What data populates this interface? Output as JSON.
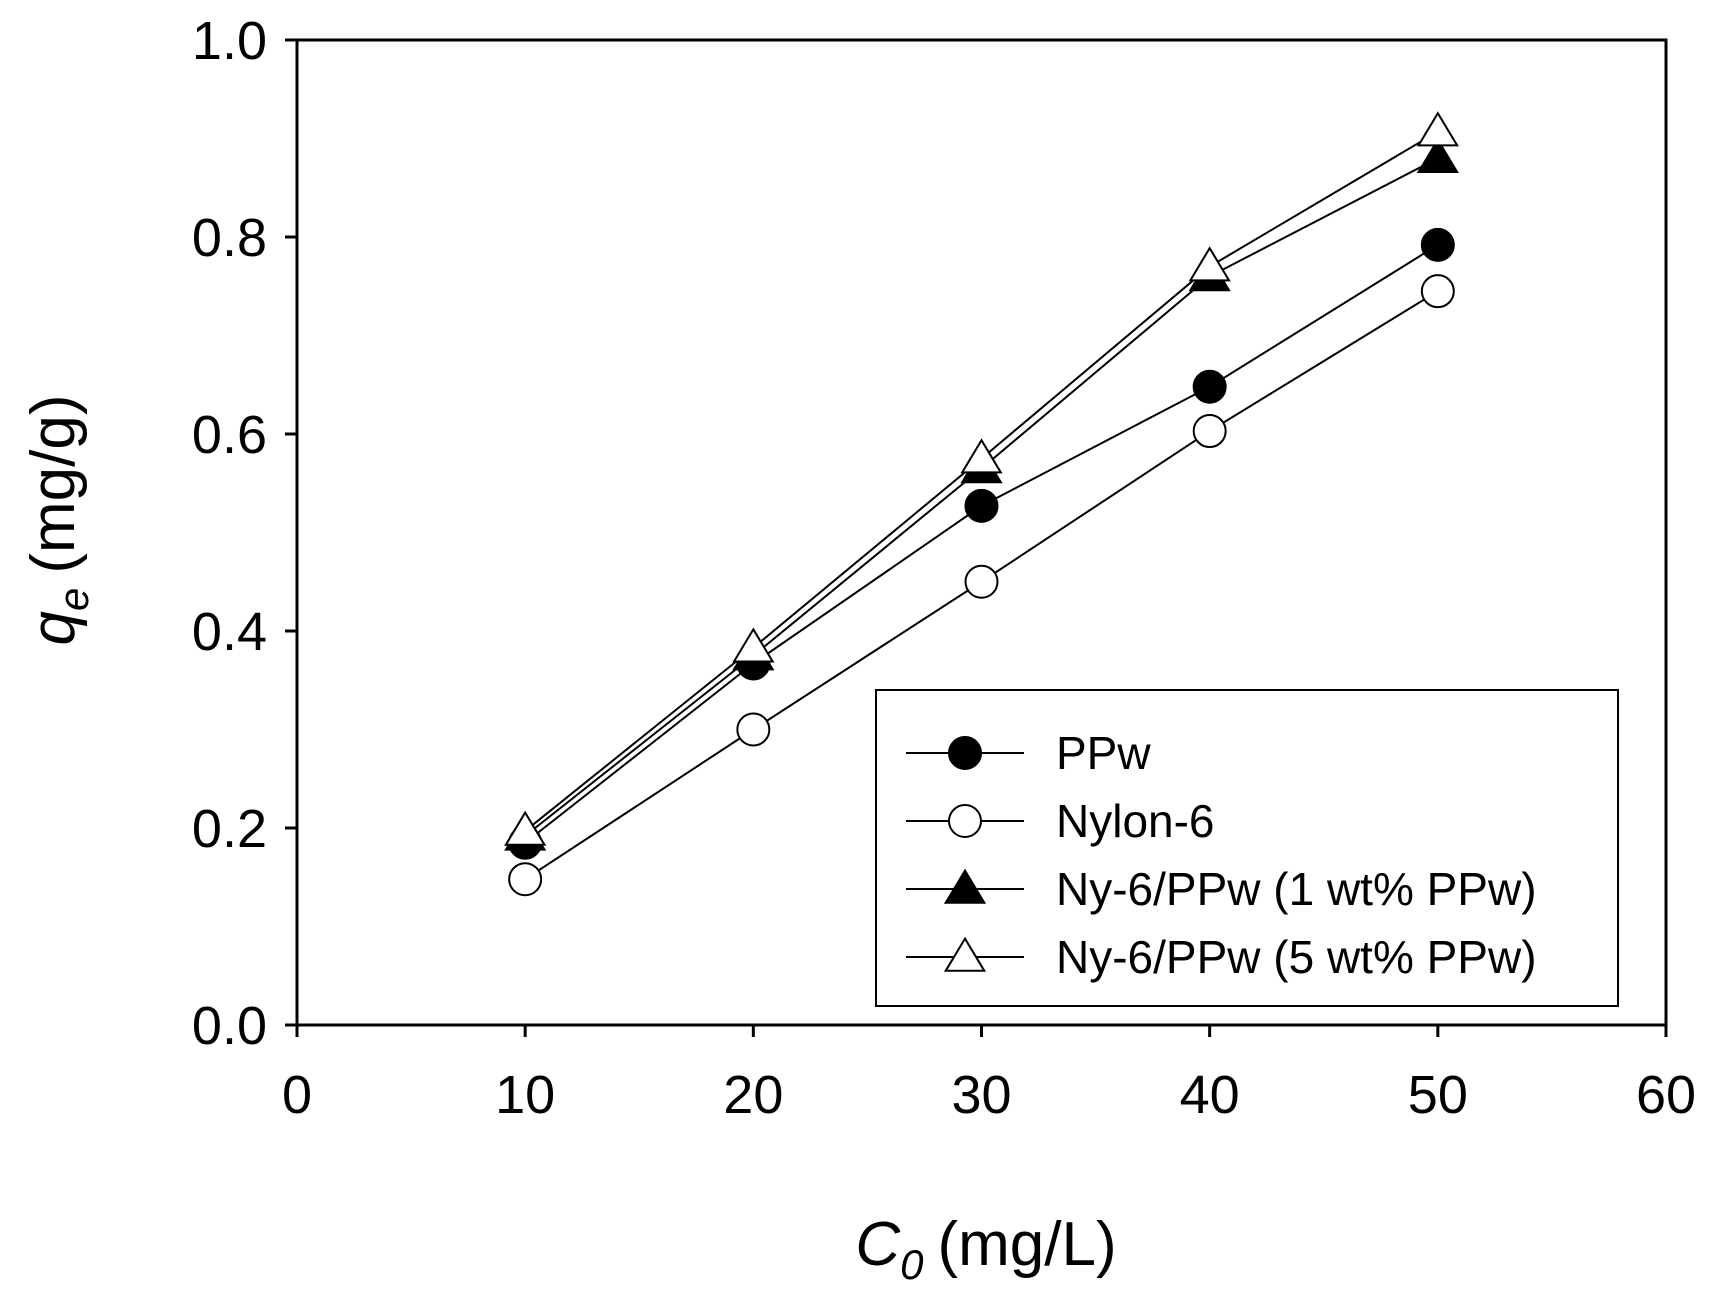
{
  "chart_data": {
    "type": "line",
    "title": "",
    "xlabel": {
      "main": "C",
      "sub": "0",
      "unit": "(mg/L)"
    },
    "ylabel": {
      "main": "q",
      "sub": "e",
      "unit": "(mg/g)"
    },
    "xlim": [
      0,
      60
    ],
    "ylim": [
      0.0,
      1.0
    ],
    "xticks": [
      0,
      10,
      20,
      30,
      40,
      50,
      60
    ],
    "xtick_labels": [
      "0",
      "10",
      "20",
      "30",
      "40",
      "50",
      "60"
    ],
    "yticks": [
      0.0,
      0.2,
      0.4,
      0.6,
      0.8,
      1.0
    ],
    "ytick_labels": [
      "0.0",
      "0.2",
      "0.4",
      "0.6",
      "0.8",
      "1.0"
    ],
    "grid": false,
    "legend_position": "bottom-right",
    "x": [
      10,
      20,
      30,
      40,
      50
    ],
    "series": [
      {
        "name": "PPw",
        "marker": "circle",
        "filled": true,
        "values": [
          0.185,
          0.367,
          0.527,
          0.648,
          0.792
        ]
      },
      {
        "name": "Nylon-6",
        "marker": "circle",
        "filled": false,
        "values": [
          0.148,
          0.3,
          0.45,
          0.603,
          0.745
        ]
      },
      {
        "name": "Ny-6/PPw (1 wt% PPw)",
        "marker": "triangle",
        "filled": true,
        "values": [
          0.192,
          0.375,
          0.565,
          0.76,
          0.88
        ]
      },
      {
        "name": "Ny-6/PPw (5 wt% PPw)",
        "marker": "triangle",
        "filled": false,
        "values": [
          0.197,
          0.383,
          0.575,
          0.77,
          0.907
        ]
      }
    ]
  }
}
